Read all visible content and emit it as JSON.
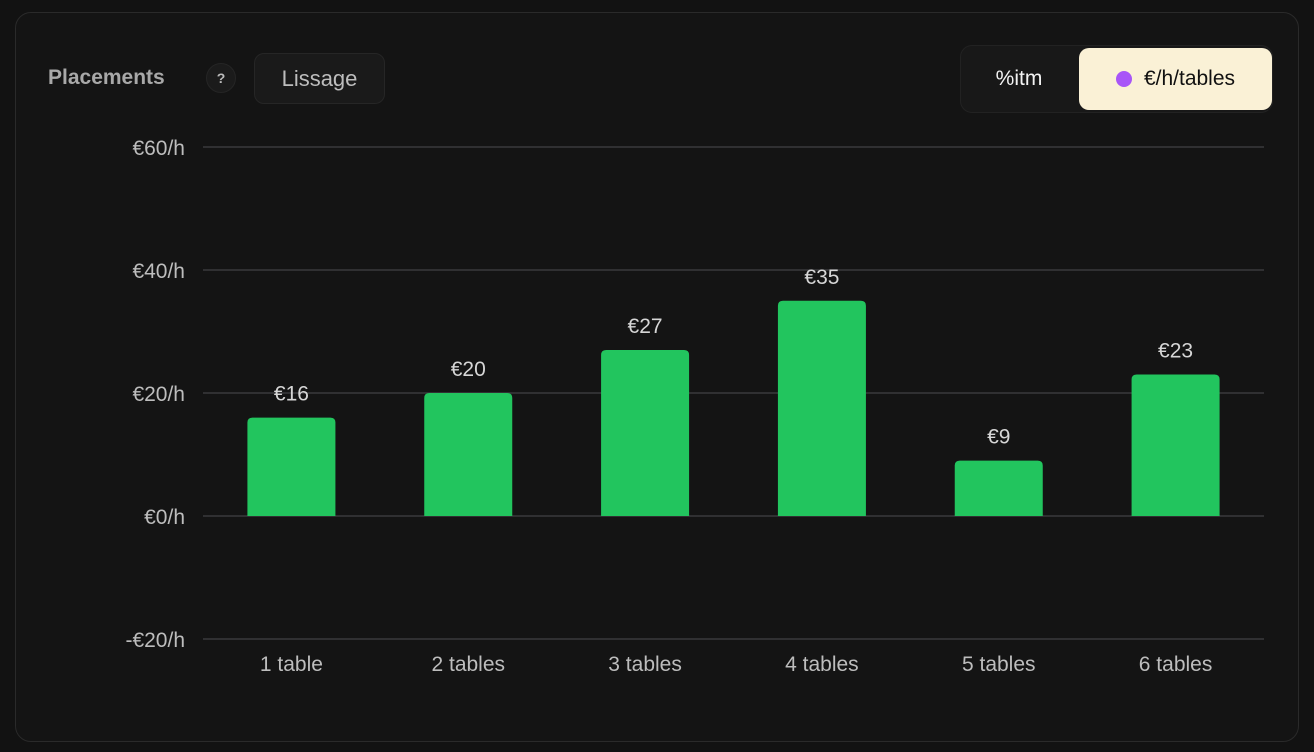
{
  "header": {
    "title": "Placements",
    "help_label": "?",
    "smoothing_label": "Lissage"
  },
  "toggle": {
    "options": [
      "%itm",
      "€/h/tables"
    ],
    "selected": "€/h/tables",
    "selected_dot_color": "#a855f7"
  },
  "chart_data": {
    "type": "bar",
    "categories": [
      "1 table",
      "2 tables",
      "3 tables",
      "4 tables",
      "5 tables",
      "6 tables"
    ],
    "values": [
      16,
      20,
      27,
      35,
      9,
      23
    ],
    "data_labels": [
      "€16",
      "€20",
      "€27",
      "€35",
      "€9",
      "€23"
    ],
    "yticks": [
      60,
      40,
      20,
      0,
      -20
    ],
    "ytick_labels": [
      "€60/h",
      "€40/h",
      "€20/h",
      "€0/h",
      "-€20/h"
    ],
    "ylim": [
      -20,
      60
    ],
    "grid": true,
    "bar_color": "#22c55e",
    "xlabel": "",
    "ylabel": "",
    "title": ""
  }
}
